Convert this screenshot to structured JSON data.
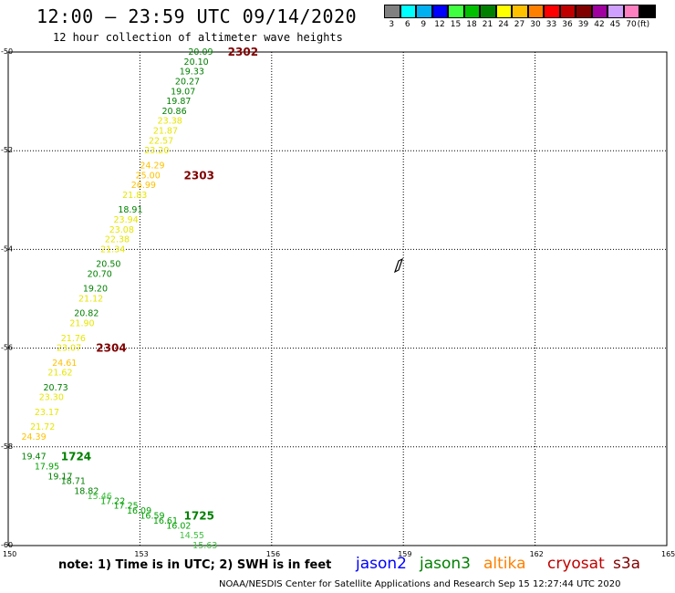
{
  "header": {
    "title": "12:00 – 23:59 UTC 09/14/2020",
    "subtitle": "12 hour collection of altimeter wave heights"
  },
  "color_scale": {
    "colors": [
      "#808080",
      "#00ffff",
      "#00b0f0",
      "#0000ff",
      "#40ff40",
      "#00c000",
      "#008000",
      "#ffff00",
      "#ffc000",
      "#ff8000",
      "#ff0000",
      "#c00000",
      "#800000",
      "#a000a0",
      "#d0a0ff",
      "#ff80c0",
      "#000000"
    ],
    "labels": [
      "3",
      "6",
      "9",
      "12",
      "15",
      "18",
      "21",
      "24",
      "27",
      "30",
      "33",
      "36",
      "39",
      "42",
      "45",
      "70",
      "(ft)"
    ]
  },
  "axes": {
    "y_ticks": [
      "-50",
      "-52",
      "-54",
      "-56",
      "-58",
      "-60"
    ],
    "x_ticks": [
      "150",
      "153",
      "156",
      "159",
      "162",
      "165"
    ]
  },
  "chart_data": {
    "type": "scatter",
    "title": "12 hour collection of altimeter wave heights",
    "x_range": [
      150,
      165
    ],
    "y_range": [
      -60,
      -50
    ],
    "grid": true,
    "pass_labels": [
      {
        "text": "2302",
        "lon": 155.0,
        "lat": -50.0,
        "color": "#800000"
      },
      {
        "text": "2303",
        "lon": 154.0,
        "lat": -52.5,
        "color": "#800000"
      },
      {
        "text": "2304",
        "lon": 152.0,
        "lat": -56.0,
        "color": "#800000"
      },
      {
        "text": "1724",
        "lon": 151.2,
        "lat": -58.2,
        "color": "#008000"
      },
      {
        "text": "1725",
        "lon": 154.0,
        "lat": -59.4,
        "color": "#008000"
      }
    ],
    "points": [
      {
        "v": "20.09",
        "lon": 154.1,
        "lat": -50.0,
        "c": "#008000"
      },
      {
        "v": "20.10",
        "lon": 154.0,
        "lat": -50.2,
        "c": "#008000"
      },
      {
        "v": "19.33",
        "lon": 153.9,
        "lat": -50.4,
        "c": "#008000"
      },
      {
        "v": "20.27",
        "lon": 153.8,
        "lat": -50.6,
        "c": "#008000"
      },
      {
        "v": "19.07",
        "lon": 153.7,
        "lat": -50.8,
        "c": "#008000"
      },
      {
        "v": "19.87",
        "lon": 153.6,
        "lat": -51.0,
        "c": "#008000"
      },
      {
        "v": "20.86",
        "lon": 153.5,
        "lat": -51.2,
        "c": "#008000"
      },
      {
        "v": "23.38",
        "lon": 153.4,
        "lat": -51.4,
        "c": "#e6e600"
      },
      {
        "v": "21.87",
        "lon": 153.3,
        "lat": -51.6,
        "c": "#e6e600"
      },
      {
        "v": "22.57",
        "lon": 153.2,
        "lat": -51.8,
        "c": "#e6e600"
      },
      {
        "v": "23.20",
        "lon": 153.1,
        "lat": -52.0,
        "c": "#e6e600"
      },
      {
        "v": "24.29",
        "lon": 153.0,
        "lat": -52.3,
        "c": "#ffc000"
      },
      {
        "v": "25.00",
        "lon": 152.9,
        "lat": -52.5,
        "c": "#ffc000"
      },
      {
        "v": "26.99",
        "lon": 152.8,
        "lat": -52.7,
        "c": "#ffc000"
      },
      {
        "v": "21.83",
        "lon": 152.6,
        "lat": -52.9,
        "c": "#e6e600"
      },
      {
        "v": "18.91",
        "lon": 152.5,
        "lat": -53.2,
        "c": "#008000"
      },
      {
        "v": "23.94",
        "lon": 152.4,
        "lat": -53.4,
        "c": "#e6e600"
      },
      {
        "v": "23.08",
        "lon": 152.3,
        "lat": -53.6,
        "c": "#e6e600"
      },
      {
        "v": "22.38",
        "lon": 152.2,
        "lat": -53.8,
        "c": "#e6e600"
      },
      {
        "v": "21.34",
        "lon": 152.1,
        "lat": -54.0,
        "c": "#e6e600"
      },
      {
        "v": "20.50",
        "lon": 152.0,
        "lat": -54.3,
        "c": "#008000"
      },
      {
        "v": "20.70",
        "lon": 151.8,
        "lat": -54.5,
        "c": "#008000"
      },
      {
        "v": "19.20",
        "lon": 151.7,
        "lat": -54.8,
        "c": "#008000"
      },
      {
        "v": "21.12",
        "lon": 151.6,
        "lat": -55.0,
        "c": "#e6e600"
      },
      {
        "v": "20.82",
        "lon": 151.5,
        "lat": -55.3,
        "c": "#008000"
      },
      {
        "v": "21.90",
        "lon": 151.4,
        "lat": -55.5,
        "c": "#e6e600"
      },
      {
        "v": "21.76",
        "lon": 151.2,
        "lat": -55.8,
        "c": "#e6e600"
      },
      {
        "v": "23.07",
        "lon": 151.1,
        "lat": -56.0,
        "c": "#e6e600"
      },
      {
        "v": "24.61",
        "lon": 151.0,
        "lat": -56.3,
        "c": "#ffc000"
      },
      {
        "v": "21.62",
        "lon": 150.9,
        "lat": -56.5,
        "c": "#e6e600"
      },
      {
        "v": "20.73",
        "lon": 150.8,
        "lat": -56.8,
        "c": "#008000"
      },
      {
        "v": "23.30",
        "lon": 150.7,
        "lat": -57.0,
        "c": "#e6e600"
      },
      {
        "v": "23.17",
        "lon": 150.6,
        "lat": -57.3,
        "c": "#e6e600"
      },
      {
        "v": "21.72",
        "lon": 150.5,
        "lat": -57.6,
        "c": "#e6e600"
      },
      {
        "v": "24.39",
        "lon": 150.3,
        "lat": -57.8,
        "c": "#ffc000"
      },
      {
        "v": "19.47",
        "lon": 150.3,
        "lat": -58.2,
        "c": "#008000"
      },
      {
        "v": "17.95",
        "lon": 150.6,
        "lat": -58.4,
        "c": "#00a000"
      },
      {
        "v": "19.17",
        "lon": 150.9,
        "lat": -58.6,
        "c": "#008000"
      },
      {
        "v": "18.71",
        "lon": 151.2,
        "lat": -58.7,
        "c": "#008000"
      },
      {
        "v": "18.82",
        "lon": 151.5,
        "lat": -58.9,
        "c": "#008000"
      },
      {
        "v": "15.46",
        "lon": 151.8,
        "lat": -59.0,
        "c": "#40c040"
      },
      {
        "v": "17.22",
        "lon": 152.1,
        "lat": -59.1,
        "c": "#00a000"
      },
      {
        "v": "17.25",
        "lon": 152.4,
        "lat": -59.2,
        "c": "#00a000"
      },
      {
        "v": "16.09",
        "lon": 152.7,
        "lat": -59.3,
        "c": "#00a000"
      },
      {
        "v": "16.59",
        "lon": 153.0,
        "lat": -59.4,
        "c": "#00a000"
      },
      {
        "v": "16.61",
        "lon": 153.3,
        "lat": -59.5,
        "c": "#00a000"
      },
      {
        "v": "16.02",
        "lon": 153.6,
        "lat": -59.6,
        "c": "#00a000"
      },
      {
        "v": "14.55",
        "lon": 153.9,
        "lat": -59.8,
        "c": "#40c040"
      },
      {
        "v": "15.63",
        "lon": 154.2,
        "lat": -60.0,
        "c": "#40c040"
      }
    ]
  },
  "legend": {
    "note": "note:  1) Time is in UTC;  2) SWH is in feet",
    "sats": [
      {
        "name": "jason2",
        "color": "#0000ff"
      },
      {
        "name": "jason3",
        "color": "#008000"
      },
      {
        "name": "altika",
        "color": "#ff8000"
      },
      {
        "name": "cryosat",
        "color": "#c00000"
      },
      {
        "name": "s3a",
        "color": "#800000"
      }
    ]
  },
  "footer": {
    "credit": "NOAA/NESDIS Center for Satellite Applications and Research    Sep 15 12:27:44 UTC 2020"
  }
}
